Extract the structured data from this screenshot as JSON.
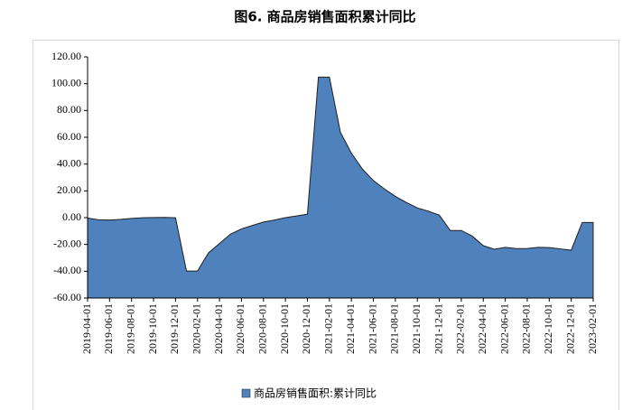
{
  "chart_data": {
    "type": "area",
    "title": "图6. 商品房销售面积累计同比",
    "categories": [
      "2019-04-01",
      null,
      "2019-06-01",
      null,
      "2019-08-01",
      null,
      "2019-10-01",
      null,
      "2019-12-01",
      null,
      "2020-02-01",
      null,
      "2020-04-01",
      null,
      "2020-06-01",
      null,
      "2020-08-01",
      null,
      "2020-10-01",
      null,
      "2020-12-01",
      null,
      "2021-02-01",
      null,
      "2021-04-01",
      null,
      "2021-06-01",
      null,
      "2021-08-01",
      null,
      "2021-10-01",
      null,
      "2021-12-01",
      null,
      "2022-02-01",
      null,
      "2022-04-01",
      null,
      "2022-06-01",
      null,
      "2022-08-01",
      null,
      "2022-10-01",
      null,
      "2022-12-01",
      null,
      "2023-02-01"
    ],
    "series": [
      {
        "name": "商品房销售面积:累计同比",
        "color": "#4f81bd",
        "values": [
          -0.3,
          -1.6,
          -1.8,
          -1.3,
          -0.6,
          -0.1,
          0.1,
          0.2,
          -0.1,
          -39.9,
          -39.9,
          -26.3,
          -19.3,
          -12.3,
          -8.4,
          -5.8,
          -3.3,
          -1.8,
          0.0,
          1.3,
          2.6,
          104.9,
          104.9,
          63.8,
          48.1,
          36.3,
          27.7,
          21.5,
          15.9,
          11.3,
          7.3,
          4.8,
          1.9,
          -9.6,
          -9.6,
          -13.8,
          -20.9,
          -23.6,
          -22.2,
          -23.1,
          -23.0,
          -22.2,
          -22.3,
          -23.3,
          -24.3,
          -3.6,
          -3.6
        ]
      }
    ],
    "ylim": [
      -60,
      120
    ],
    "yticks": [
      {
        "value": -60,
        "label": "-60.00"
      },
      {
        "value": -40,
        "label": "-40.00"
      },
      {
        "value": -20,
        "label": "-20.00"
      },
      {
        "value": 0,
        "label": "0.00"
      },
      {
        "value": 20,
        "label": "20.00"
      },
      {
        "value": 40,
        "label": "40.00"
      },
      {
        "value": 60,
        "label": "60.00"
      },
      {
        "value": 80,
        "label": "80.00"
      },
      {
        "value": 100,
        "label": "100.00"
      },
      {
        "value": 120,
        "label": "120.00"
      }
    ],
    "grid": false,
    "legend": "bottom"
  }
}
